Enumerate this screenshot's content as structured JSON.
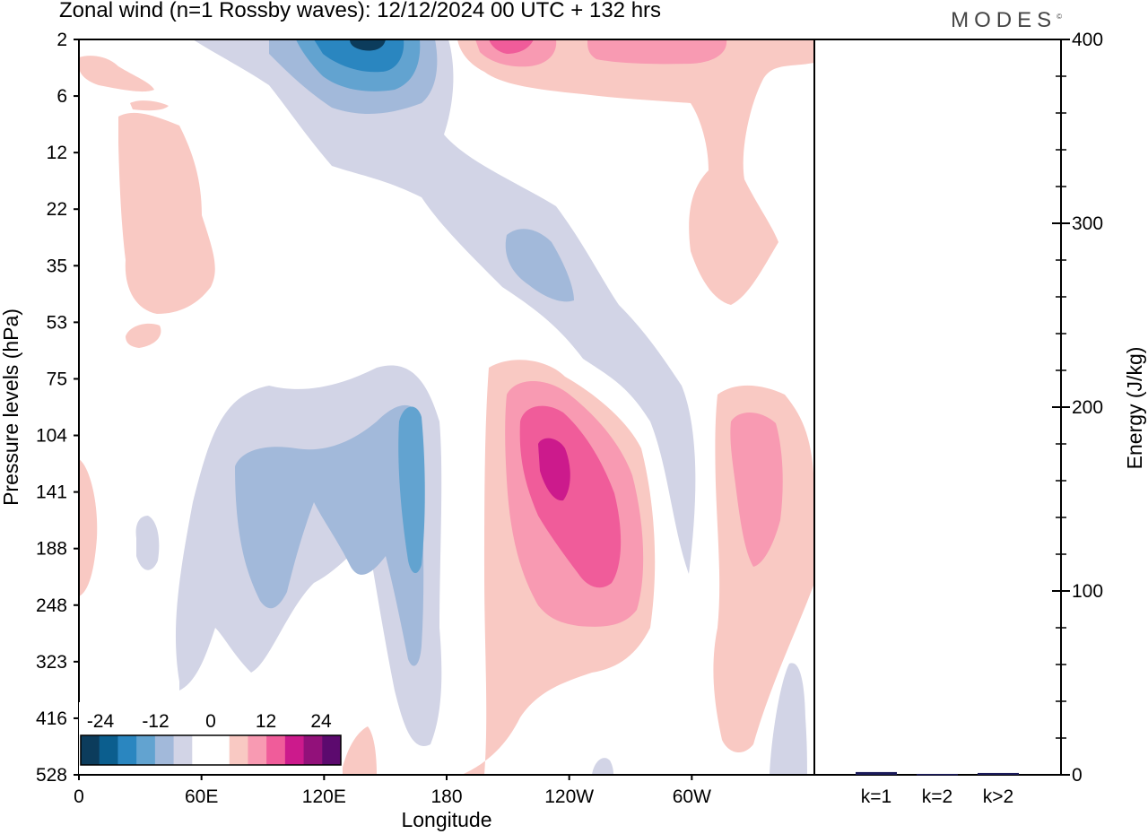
{
  "header": {
    "title": "Zonal wind (n=1 Rossby waves):  12/12/2024  00 UTC  + 132 hrs",
    "brand": "MODES",
    "brand_mark": "©"
  },
  "chart_data": [
    {
      "type": "heatmap",
      "title": "Zonal wind (n=1 Rossby waves):  12/12/2024  00 UTC  + 132 hrs",
      "xlabel": "Longitude",
      "ylabel": "Pressure levels (hPa)",
      "x_ticks": [
        "0",
        "60E",
        "120E",
        "180",
        "120W",
        "60W"
      ],
      "y_ticks": [
        "2",
        "6",
        "12",
        "22",
        "35",
        "53",
        "75",
        "104",
        "141",
        "188",
        "248",
        "323",
        "416",
        "528"
      ],
      "colorbar": {
        "tick_labels": [
          "-24",
          "-12",
          "0",
          "12",
          "24"
        ],
        "colors": [
          "#0c3c5c",
          "#0b5e8e",
          "#2a86c0",
          "#62a3d0",
          "#a2b9da",
          "#d2d4e6",
          "#ffffff",
          "#ffffff",
          "#f9c9c3",
          "#f89ab2",
          "#f05c9a",
          "#cc1a8c",
          "#92117a",
          "#5c0a6e"
        ]
      },
      "grid": false
    },
    {
      "type": "bar",
      "categories": [
        "k=1",
        "k=2",
        "k>2"
      ],
      "values": [
        1.5,
        0.5,
        1
      ],
      "ylabel": "Energy (J/kg)",
      "ylim": [
        0,
        400
      ],
      "y_ticks": [
        "0",
        "100",
        "200",
        "300",
        "400"
      ],
      "bar_color": "#1a1a5a"
    }
  ]
}
